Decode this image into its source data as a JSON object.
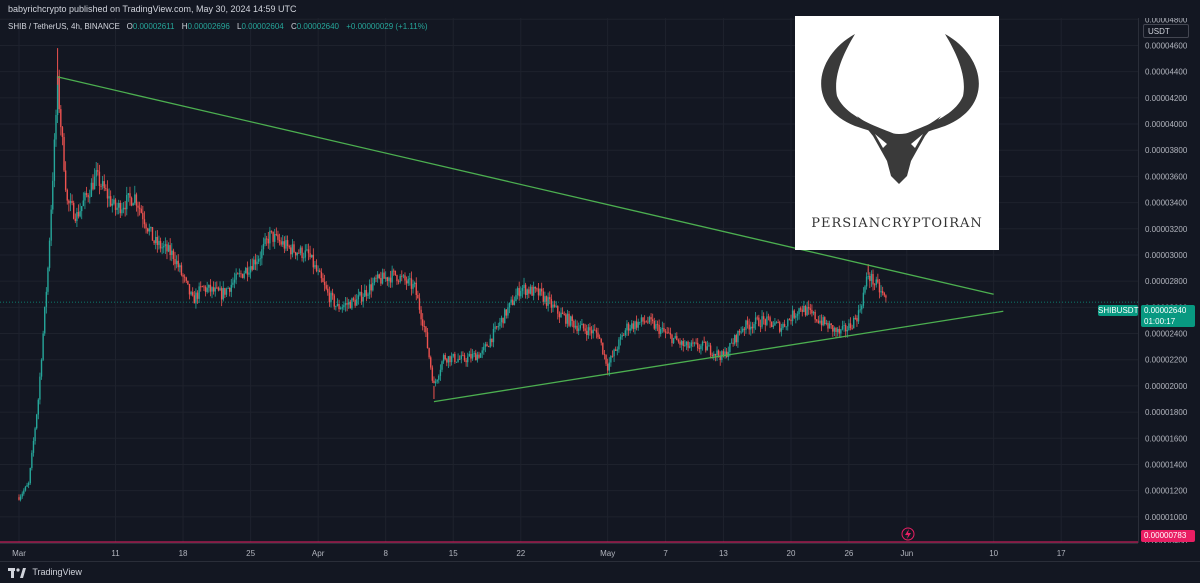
{
  "header": {
    "published_line": "babyrichcrypto published on TradingView.com, May 30, 2024 14:59 UTC"
  },
  "legend": {
    "symbol": "SHIB / TetherUS, 4h, BINANCE",
    "o_label": "O",
    "o_value": "0.00002611",
    "h_label": "H",
    "h_value": "0.00002696",
    "l_label": "L",
    "l_value": "0.00002604",
    "c_label": "C",
    "c_value": "0.00002640",
    "change": "+0.00000029 (+1.11%)"
  },
  "currency": "USDT",
  "current_price": {
    "symbol": "SHIBUSDT",
    "price": "0.00002640",
    "countdown": "01:00:17"
  },
  "low_marker": "0.00000783",
  "brand_text": "PERSIANCRYPTOIRAN",
  "footer": {
    "logo_text": "TradingView"
  },
  "colors": {
    "background": "#131722",
    "up": "#26a69a",
    "down": "#ef5350",
    "trendline": "#4caf50",
    "low_line": "#e91e63",
    "accent_badge": "#089981"
  },
  "chart_data": {
    "type": "candlestick",
    "title": "SHIB / TetherUS, 4h, BINANCE",
    "x_ticks": [
      "Mar",
      "11",
      "18",
      "25",
      "Apr",
      "8",
      "15",
      "22",
      "May",
      "7",
      "13",
      "20",
      "26",
      "Jun",
      "10",
      "17"
    ],
    "y_ticks": [
      "0.00004800",
      "0.00004600",
      "0.00004400",
      "0.00004200",
      "0.00004000",
      "0.00003800",
      "0.00003600",
      "0.00003400",
      "0.00003200",
      "0.00003000",
      "0.00002800",
      "0.00002600",
      "0.00002400",
      "0.00002200",
      "0.00002000",
      "0.00001800",
      "0.00001600",
      "0.00001400",
      "0.00001200",
      "0.00001000",
      "0.00000800"
    ],
    "ylim": [
      8e-06,
      4.81e-05
    ],
    "date_range": [
      "2024-03-01",
      "2024-06-17"
    ],
    "price_path": [
      [
        "2024-03-01",
        1.15e-05
      ],
      [
        "2024-03-02",
        1.25e-05
      ],
      [
        "2024-03-03",
        1.9e-05
      ],
      [
        "2024-03-04",
        2.9e-05
      ],
      [
        "2024-03-05",
        4.3e-05
      ],
      [
        "2024-03-06",
        3.4e-05
      ],
      [
        "2024-03-07",
        3.3e-05
      ],
      [
        "2024-03-09",
        3.6e-05
      ],
      [
        "2024-03-11",
        3.35e-05
      ],
      [
        "2024-03-13",
        3.45e-05
      ],
      [
        "2024-03-15",
        3.1e-05
      ],
      [
        "2024-03-17",
        3e-05
      ],
      [
        "2024-03-19",
        2.65e-05
      ],
      [
        "2024-03-20",
        2.75e-05
      ],
      [
        "2024-03-22",
        2.7e-05
      ],
      [
        "2024-03-24",
        2.85e-05
      ],
      [
        "2024-03-26",
        3e-05
      ],
      [
        "2024-03-27",
        3.15e-05
      ],
      [
        "2024-03-29",
        3.05e-05
      ],
      [
        "2024-03-31",
        3e-05
      ],
      [
        "2024-04-02",
        2.7e-05
      ],
      [
        "2024-04-03",
        2.6e-05
      ],
      [
        "2024-04-05",
        2.65e-05
      ],
      [
        "2024-04-07",
        2.8e-05
      ],
      [
        "2024-04-09",
        2.85e-05
      ],
      [
        "2024-04-11",
        2.75e-05
      ],
      [
        "2024-04-12",
        2.45e-05
      ],
      [
        "2024-04-13",
        2e-05
      ],
      [
        "2024-04-14",
        2.22e-05
      ],
      [
        "2024-04-16",
        2.2e-05
      ],
      [
        "2024-04-18",
        2.25e-05
      ],
      [
        "2024-04-20",
        2.5e-05
      ],
      [
        "2024-04-22",
        2.75e-05
      ],
      [
        "2024-04-24",
        2.7e-05
      ],
      [
        "2024-04-26",
        2.55e-05
      ],
      [
        "2024-04-28",
        2.45e-05
      ],
      [
        "2024-04-30",
        2.4e-05
      ],
      [
        "2024-05-01",
        2.15e-05
      ],
      [
        "2024-05-03",
        2.45e-05
      ],
      [
        "2024-05-05",
        2.5e-05
      ],
      [
        "2024-05-07",
        2.4e-05
      ],
      [
        "2024-05-09",
        2.3e-05
      ],
      [
        "2024-05-11",
        2.3e-05
      ],
      [
        "2024-05-13",
        2.22e-05
      ],
      [
        "2024-05-15",
        2.45e-05
      ],
      [
        "2024-05-17",
        2.5e-05
      ],
      [
        "2024-05-19",
        2.45e-05
      ],
      [
        "2024-05-21",
        2.6e-05
      ],
      [
        "2024-05-23",
        2.5e-05
      ],
      [
        "2024-05-25",
        2.4e-05
      ],
      [
        "2024-05-26",
        2.45e-05
      ],
      [
        "2024-05-27",
        2.55e-05
      ],
      [
        "2024-05-28",
        2.85e-05
      ],
      [
        "2024-05-29",
        2.75e-05
      ],
      [
        "2024-05-30",
        2.64e-05
      ]
    ],
    "spikes": [
      [
        "2024-03-05",
        4.58e-05
      ],
      [
        "2024-05-28",
        2.93e-05
      ],
      [
        "2024-04-13",
        1.9e-05
      ]
    ],
    "trendlines": [
      {
        "name": "upper",
        "from": [
          "2024-03-05",
          4.36e-05
        ],
        "to": [
          "2024-06-10",
          2.7e-05
        ]
      },
      {
        "name": "lower",
        "from": [
          "2024-04-13",
          1.88e-05
        ],
        "to": [
          "2024-06-11",
          2.57e-05
        ]
      }
    ],
    "current_price": 2.64e-05,
    "low_line": 7.83e-06
  }
}
